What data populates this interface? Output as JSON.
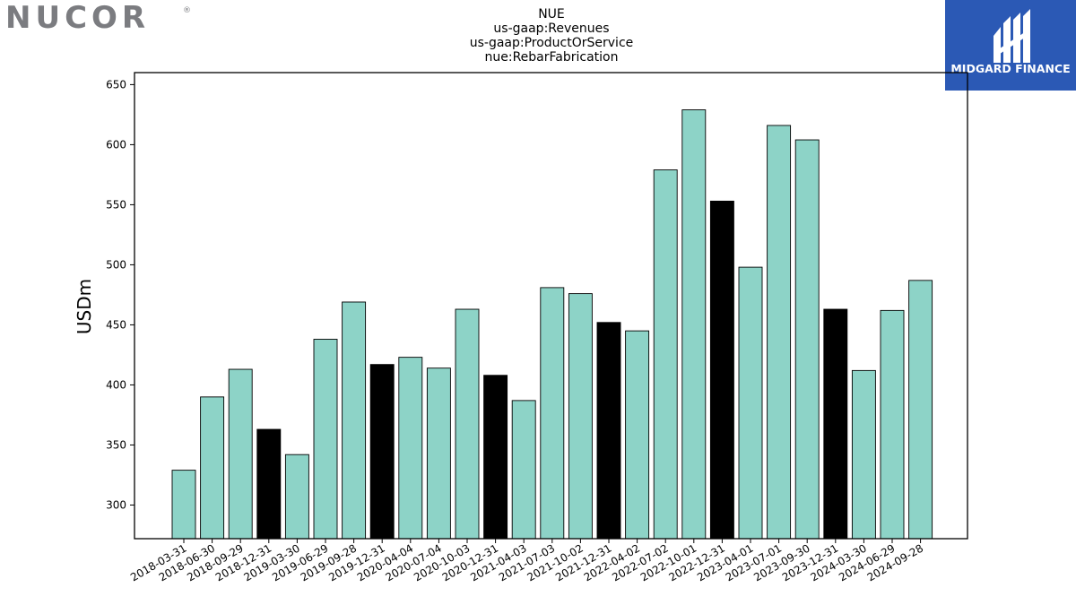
{
  "branding": {
    "left_logo_text": "NUCOR",
    "left_logo_mark": "®",
    "right_logo_text": "MIDGARD FINANCE",
    "right_logo_bg": "#2b59b5"
  },
  "chart_data": {
    "type": "bar",
    "title_lines": [
      "NUE",
      "us-gaap:Revenues",
      "us-gaap:ProductOrService",
      "nue:RebarFabrication"
    ],
    "xlabel": "",
    "ylabel": "USDm",
    "ylim": [
      272,
      660
    ],
    "yticks": [
      300,
      350,
      400,
      450,
      500,
      550,
      600,
      650
    ],
    "grid": false,
    "bar_color": "#8dd3c7",
    "highlight_color": "#000000",
    "edge_color": "#000000",
    "categories": [
      "2018-03-31",
      "2018-06-30",
      "2018-09-29",
      "2018-12-31",
      "2019-03-30",
      "2019-06-29",
      "2019-09-28",
      "2019-12-31",
      "2020-04-04",
      "2020-07-04",
      "2020-10-03",
      "2020-12-31",
      "2021-04-03",
      "2021-07-03",
      "2021-10-02",
      "2021-12-31",
      "2022-04-02",
      "2022-07-02",
      "2022-10-01",
      "2022-12-31",
      "2023-04-01",
      "2023-07-01",
      "2023-09-30",
      "2023-12-31",
      "2024-03-30",
      "2024-06-29",
      "2024-09-28"
    ],
    "values": [
      329,
      390,
      413,
      363,
      342,
      438,
      469,
      417,
      423,
      414,
      463,
      408,
      387,
      481,
      476,
      452,
      445,
      579,
      629,
      553,
      498,
      616,
      604,
      463,
      412,
      462,
      487
    ],
    "highlighted": [
      false,
      false,
      false,
      true,
      false,
      false,
      false,
      true,
      false,
      false,
      false,
      true,
      false,
      false,
      false,
      true,
      false,
      false,
      false,
      true,
      false,
      false,
      false,
      true,
      false,
      false,
      false
    ]
  }
}
